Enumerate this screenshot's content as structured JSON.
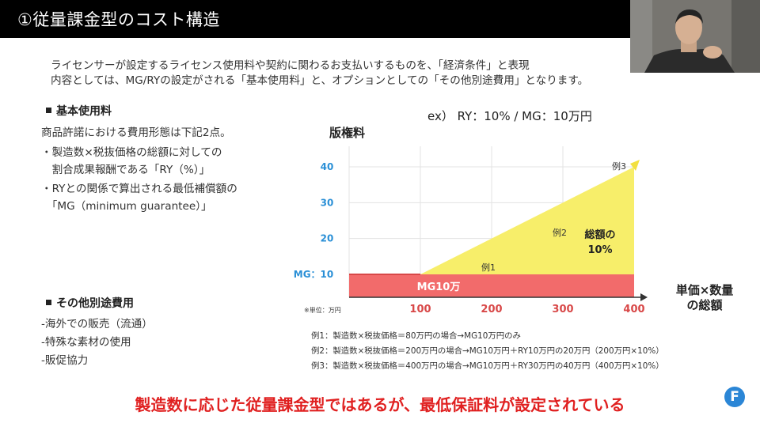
{
  "slide": {
    "title": "①従量課金型のコスト構造",
    "intro": [
      "ライセンサーが設定するライセンス使用料や契約に関わるお支払いするものを、「経済条件」と表現",
      "内容としては、MG/RYの設定がされる「基本使用料」と、オプションとしての「その他別途費用」となります。"
    ],
    "basic_fee": {
      "heading": "基本使用料",
      "lines": [
        "商品許諾における費用形態は下記2点。",
        "・製造数×税抜価格の総額に対しての",
        "　割合成果報酬である「RY（%）」",
        "・RYとの関係で算出される最低補償額の",
        "　「MG（minimum guarantee）」"
      ]
    },
    "other_fees": {
      "heading": "その他別途費用",
      "lines": [
        "-海外での販売（流通）",
        "-特殊な素材の使用",
        "-販促協力"
      ]
    },
    "examples": [
      "例1：製造数×税抜価格＝80万円の場合→MG10万円のみ",
      "例2：製造数×税抜価格＝200万円の場合→MG10万円＋RY10万円の20万円（200万円×10%）",
      "例3：製造数×税抜価格＝400万円の場合→MG10万円＋RY30万円の40万円（400万円×10%）"
    ],
    "conclusion": "製造数に応じた従量課金型ではあるが、最低保証料が設定されている",
    "logo_letter": "F"
  },
  "chart_data": {
    "type": "area",
    "title": "ex）  RY：10% / MG：10万円",
    "ylabel": "版権料",
    "xlabel": "単価×数量の総額",
    "unit_note": "※単位：万円",
    "x_ticks": [
      "100",
      "200",
      "300",
      "400"
    ],
    "y_ticks": [
      "40",
      "30",
      "20"
    ],
    "mg_tick_label": "MG：10",
    "xlim": [
      0,
      400
    ],
    "ylim": [
      0,
      45
    ],
    "mg_value": 10,
    "ry_rate": 0.1,
    "series": [
      {
        "name": "MG10万",
        "x": [
          0,
          400
        ],
        "y": [
          10,
          10
        ],
        "color": "#f26b6b"
      },
      {
        "name": "総額の10%",
        "x": [
          100,
          400
        ],
        "y": [
          10,
          40
        ],
        "color": "#f7ee6a"
      }
    ],
    "mg_band_label": "MG10万",
    "ry_area_label": [
      "総額の",
      "10%"
    ],
    "annotations": [
      {
        "label": "例1",
        "x": 80,
        "y": 10
      },
      {
        "label": "例2",
        "x": 200,
        "y": 20
      },
      {
        "label": "例3",
        "x": 400,
        "y": 40
      }
    ],
    "grid": true,
    "colors": {
      "tick_blue": "#2a8fd6",
      "line_red": "#d84848",
      "ry_area": "#f7ee6a",
      "mg_area": "#f26b6b",
      "arrow_yellow": "#f2e040"
    }
  }
}
